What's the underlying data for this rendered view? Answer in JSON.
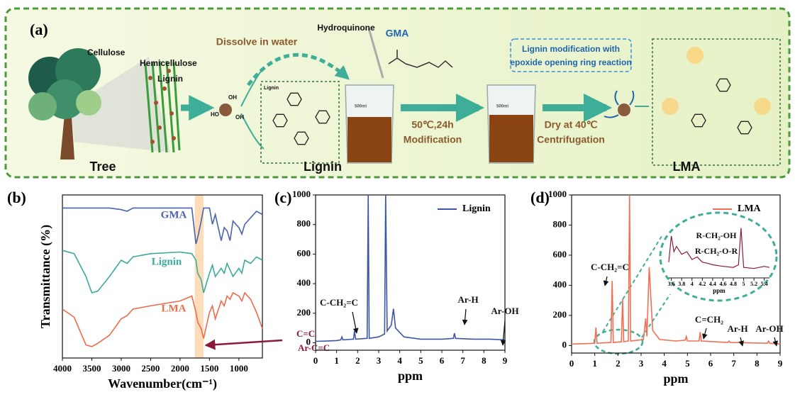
{
  "diagram": {
    "label": "(a)",
    "tree_parts": [
      "Cellulose",
      "Hemicellulose",
      "Lignin"
    ],
    "groups": [
      "OH",
      "HO",
      "OH"
    ],
    "dissolve": "Dissolve in water",
    "reagent": "Hydroquinone",
    "monomer": "GMA",
    "reaction_note": [
      "Lignin modification with",
      "epoxide opening ring reaction"
    ],
    "condition": [
      "50℃,24h",
      "Modification"
    ],
    "workup": [
      "Dry at 40℃",
      "Centrifugation"
    ],
    "beaker_volume": "500ml",
    "structure_label": "Lignin",
    "stage_labels": [
      "Tree",
      "Lignin",
      "LMA"
    ]
  },
  "chart_data": [
    {
      "type": "line",
      "panel_label": "(b)",
      "x_label": "Wavenumber(cm⁻¹)",
      "y_label": "Transmittance (%)",
      "x": [
        4000,
        3800,
        3600,
        3500,
        3400,
        3200,
        3000,
        2900,
        2800,
        2500,
        2000,
        1800,
        1730,
        1700,
        1640,
        1600,
        1500,
        1450,
        1400,
        1300,
        1250,
        1200,
        1150,
        1100,
        1000,
        950,
        900,
        800,
        700,
        600
      ],
      "series": [
        {
          "name": "GMA",
          "color": "#4a63b0",
          "values": [
            92,
            92,
            92,
            92,
            92,
            92,
            91,
            90,
            92,
            92,
            92,
            92,
            70,
            74,
            84,
            92,
            92,
            82,
            88,
            72,
            80,
            78,
            72,
            84,
            80,
            76,
            82,
            86,
            90,
            88
          ]
        },
        {
          "name": "Lignin",
          "color": "#3aab9c",
          "values": [
            66,
            64,
            50,
            40,
            41,
            50,
            60,
            58,
            62,
            64,
            65,
            64,
            60,
            52,
            48,
            40,
            52,
            57,
            50,
            55,
            52,
            58,
            54,
            50,
            55,
            52,
            60,
            58,
            62,
            60
          ]
        },
        {
          "name": "LMA",
          "color": "#f06a4a",
          "values": [
            30,
            25,
            8,
            7,
            9,
            14,
            24,
            26,
            30,
            32,
            35,
            38,
            28,
            22,
            18,
            12,
            28,
            32,
            24,
            35,
            32,
            38,
            36,
            40,
            38,
            35,
            40,
            36,
            28,
            18
          ]
        }
      ],
      "highlight_range": [
        1750,
        1600
      ],
      "annotations": [
        "C=C",
        "Ar-C=C"
      ],
      "xlim": [
        4000,
        600
      ],
      "xticks": [
        4000,
        3500,
        3000,
        2500,
        2000,
        1500,
        1000
      ],
      "ylim": [
        0,
        100
      ]
    },
    {
      "type": "line",
      "panel_label": "(c)",
      "x_label": "ppm",
      "legend": "upper right",
      "x": [
        0,
        0.5,
        1,
        1.2,
        1.25,
        1.3,
        1.8,
        1.85,
        1.9,
        2.45,
        2.5,
        2.55,
        3.0,
        3.28,
        3.33,
        3.4,
        3.6,
        3.7,
        3.8,
        4.2,
        5,
        6,
        6.55,
        6.6,
        6.65,
        7.5,
        8.3,
        9
      ],
      "series": [
        {
          "name": "Lignin",
          "color": "#3d55a8",
          "values": [
            10,
            12,
            15,
            20,
            40,
            20,
            25,
            80,
            25,
            30,
            1000,
            30,
            40,
            60,
            1000,
            80,
            120,
            230,
            100,
            40,
            25,
            25,
            30,
            65,
            30,
            25,
            25,
            20
          ]
        }
      ],
      "annotations": [
        "C-CH₂=C",
        "Ar-H",
        "Ar-OH"
      ],
      "xlim": [
        0,
        9
      ],
      "xticks": [
        0,
        1,
        2,
        3,
        4,
        5,
        6,
        7,
        8,
        9
      ],
      "ylim": [
        -50,
        1000
      ],
      "yticks": [
        0,
        200,
        400,
        600,
        800,
        1000
      ]
    },
    {
      "type": "line",
      "panel_label": "(d)",
      "x_label": "ppm",
      "legend": "upper right",
      "x": [
        0,
        0.5,
        1,
        1.05,
        1.1,
        1.7,
        1.75,
        1.8,
        2.15,
        2.2,
        2.25,
        2.45,
        2.5,
        2.55,
        3.1,
        3.2,
        3.25,
        3.35,
        3.5,
        3.8,
        4.5,
        4.9,
        4.95,
        5.0,
        5.5,
        5.55,
        5.6,
        6.75,
        6.8,
        6.85,
        8.45,
        8.5,
        8.55,
        9
      ],
      "series": [
        {
          "name": "LMA",
          "color": "#f07055",
          "values": [
            10,
            12,
            15,
            120,
            15,
            20,
            430,
            20,
            25,
            310,
            25,
            30,
            1000,
            30,
            40,
            180,
            60,
            520,
            100,
            40,
            30,
            35,
            60,
            30,
            30,
            90,
            30,
            20,
            30,
            20,
            15,
            30,
            15,
            10
          ]
        }
      ],
      "annotations": [
        "C-CH₂=C",
        "C=CH₂",
        "Ar-H",
        "Ar-OH"
      ],
      "xlim": [
        0,
        9
      ],
      "xticks": [
        0,
        1,
        2,
        3,
        4,
        5,
        6,
        7,
        8,
        9
      ],
      "ylim": [
        -50,
        1000
      ],
      "yticks": [
        0,
        200,
        400,
        600,
        800,
        1000
      ]
    },
    {
      "type": "line",
      "x_label": "ppm",
      "x": [
        3.55,
        3.6,
        3.65,
        3.7,
        3.8,
        3.9,
        4.0,
        4.1,
        4.2,
        4.3,
        4.4,
        4.6,
        4.8,
        4.9,
        4.95,
        5.0,
        5.2,
        5.4,
        5.5
      ],
      "values": [
        30,
        80,
        50,
        60,
        45,
        50,
        35,
        40,
        30,
        28,
        25,
        22,
        20,
        25,
        95,
        20,
        18,
        22,
        20
      ],
      "color": "#8b1a3a",
      "annotations": [
        "R-CH₂-OH",
        "R-CH₂-O-R"
      ],
      "xlim": [
        3.55,
        5.5
      ],
      "xticks": [
        3.6,
        3.8,
        4.0,
        4.2,
        4.4,
        4.6,
        4.8,
        5.0,
        5.2,
        5.4
      ],
      "ylim": [
        0,
        100
      ]
    }
  ]
}
